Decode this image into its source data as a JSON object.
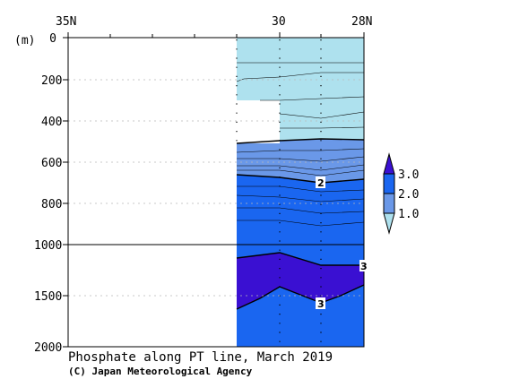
{
  "title": "Phosphate along PT line, March 2019",
  "credit": "(C) Japan Meteorological Agency",
  "chart_data": {
    "type": "heatmap",
    "title": "Phosphate along PT line, March 2019",
    "xlabel": "",
    "ylabel": "(m)",
    "x_ticks": [
      "35N",
      "30",
      "28N"
    ],
    "x_range": [
      35,
      28
    ],
    "y_ticks": [
      0,
      200,
      400,
      600,
      800,
      1000,
      1500,
      2000
    ],
    "y_axis": "depth (m), linear 0–1000 then compressed 1000–2000",
    "colorbar": {
      "levels": [
        1.0,
        2.0,
        3.0
      ],
      "labels": [
        "1.0",
        "2.0",
        "3.0"
      ],
      "colors": [
        "#aee1ee",
        "#6a98e8",
        "#1a66f0",
        "#3a10d2"
      ]
    },
    "bands": [
      {
        "range": "< 1.0",
        "color": "#aee1ee",
        "depth_m": [
          0,
          500
        ]
      },
      {
        "range": "1.0 – 2.0",
        "color": "#6a98e8",
        "depth_m": [
          500,
          670
        ]
      },
      {
        "range": "2.0 – 3.0",
        "color": "#1a66f0",
        "depth_m": [
          670,
          2000
        ]
      },
      {
        "range": "> 3.0",
        "color": "#3a10d2",
        "depth_m": [
          1150,
          1550
        ]
      }
    ],
    "contour_labels": [
      {
        "text": "2",
        "lat": 29.0,
        "depth_m": 700
      },
      {
        "text": "3",
        "lat": 29.0,
        "depth_m": 1540
      },
      {
        "text": "3",
        "lat": 28.0,
        "depth_m": 1230
      }
    ],
    "grid": true
  },
  "colors": {
    "band_low": "#aee1ee",
    "band_mid": "#6a98e8",
    "band_high": "#1a66f0",
    "band_top": "#3a10d2"
  }
}
